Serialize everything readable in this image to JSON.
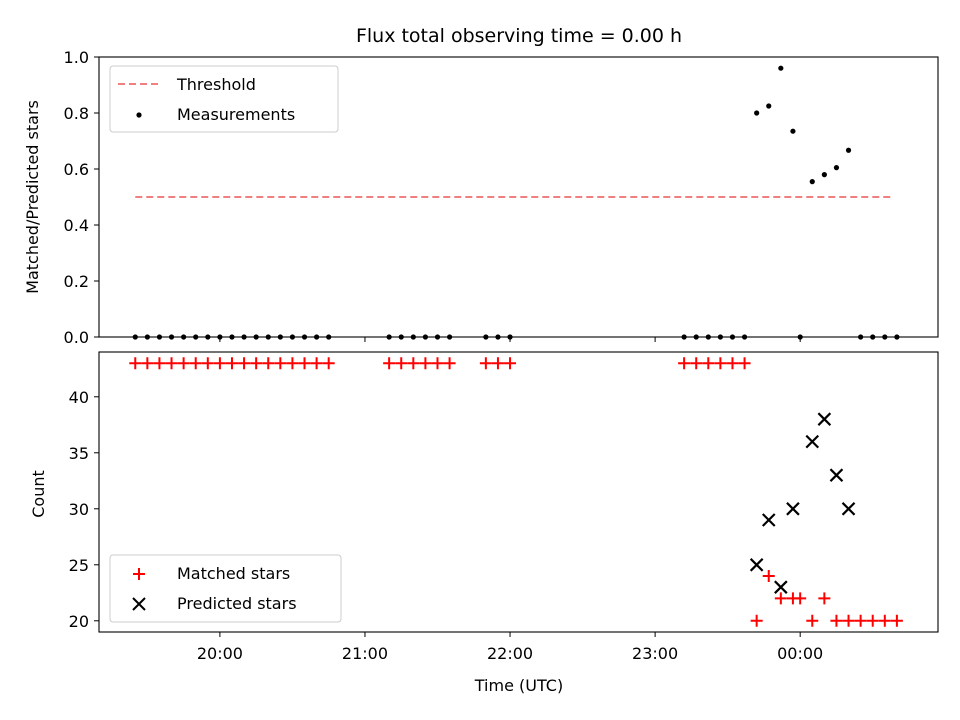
{
  "title": "Flux total observing time = 0.00 h",
  "xlabel": "Time (UTC)",
  "x_ticks": [
    "20:00",
    "21:00",
    "22:00",
    "23:00",
    "00:00"
  ],
  "colors": {
    "threshold": "#f08080",
    "measurements": "#000000",
    "matched": "#ff0000",
    "predicted": "#000000"
  },
  "chart_data": [
    {
      "type": "scatter",
      "panel": "top",
      "ylabel": "Matched/Predicted stars",
      "ylim": [
        0,
        1.0
      ],
      "y_ticks": [
        "0.0",
        "0.2",
        "0.4",
        "0.6",
        "0.8",
        "1.0"
      ],
      "legend": [
        "Threshold",
        "Measurements"
      ],
      "legend_position": "upper-left",
      "threshold": {
        "name": "Threshold",
        "y": 0.5,
        "x_start": "19:25",
        "x_end": "00:38"
      },
      "series": [
        {
          "name": "Measurements",
          "points": [
            [
              "19:25",
              0
            ],
            [
              "19:30",
              0
            ],
            [
              "19:35",
              0
            ],
            [
              "19:40",
              0
            ],
            [
              "19:45",
              0
            ],
            [
              "19:50",
              0
            ],
            [
              "19:55",
              0
            ],
            [
              "20:00",
              0
            ],
            [
              "20:05",
              0
            ],
            [
              "20:10",
              0
            ],
            [
              "20:15",
              0
            ],
            [
              "20:20",
              0
            ],
            [
              "20:25",
              0
            ],
            [
              "20:30",
              0
            ],
            [
              "20:35",
              0
            ],
            [
              "20:40",
              0
            ],
            [
              "20:45",
              0
            ],
            [
              "21:10",
              0
            ],
            [
              "21:15",
              0
            ],
            [
              "21:20",
              0
            ],
            [
              "21:25",
              0
            ],
            [
              "21:30",
              0
            ],
            [
              "21:35",
              0
            ],
            [
              "21:50",
              0
            ],
            [
              "21:55",
              0
            ],
            [
              "22:00",
              0
            ],
            [
              "23:12",
              0
            ],
            [
              "23:17",
              0
            ],
            [
              "23:22",
              0
            ],
            [
              "23:27",
              0
            ],
            [
              "23:32",
              0
            ],
            [
              "23:37",
              0
            ],
            [
              "23:42",
              0.8
            ],
            [
              "23:47",
              0.825
            ],
            [
              "23:52",
              0.96
            ],
            [
              "23:57",
              0.735
            ],
            [
              "00:00",
              0
            ],
            [
              "00:05",
              0.555
            ],
            [
              "00:10",
              0.58
            ],
            [
              "00:15",
              0.605
            ],
            [
              "00:20",
              0.667
            ],
            [
              "00:25",
              0
            ],
            [
              "00:30",
              0
            ],
            [
              "00:35",
              0
            ],
            [
              "00:40",
              0
            ]
          ]
        }
      ]
    },
    {
      "type": "scatter",
      "panel": "bottom",
      "ylabel": "Count",
      "ylim": [
        19,
        44
      ],
      "y_ticks": [
        20,
        25,
        30,
        35,
        40
      ],
      "legend": [
        "Matched stars",
        "Predicted stars"
      ],
      "legend_position": "lower-left",
      "series": [
        {
          "name": "Matched stars",
          "marker": "+",
          "points": [
            [
              "19:25",
              43
            ],
            [
              "19:30",
              43
            ],
            [
              "19:35",
              43
            ],
            [
              "19:40",
              43
            ],
            [
              "19:45",
              43
            ],
            [
              "19:50",
              43
            ],
            [
              "19:55",
              43
            ],
            [
              "20:00",
              43
            ],
            [
              "20:05",
              43
            ],
            [
              "20:10",
              43
            ],
            [
              "20:15",
              43
            ],
            [
              "20:20",
              43
            ],
            [
              "20:25",
              43
            ],
            [
              "20:30",
              43
            ],
            [
              "20:35",
              43
            ],
            [
              "20:40",
              43
            ],
            [
              "20:45",
              43
            ],
            [
              "21:10",
              43
            ],
            [
              "21:15",
              43
            ],
            [
              "21:20",
              43
            ],
            [
              "21:25",
              43
            ],
            [
              "21:30",
              43
            ],
            [
              "21:35",
              43
            ],
            [
              "21:50",
              43
            ],
            [
              "21:55",
              43
            ],
            [
              "22:00",
              43
            ],
            [
              "23:12",
              43
            ],
            [
              "23:17",
              43
            ],
            [
              "23:22",
              43
            ],
            [
              "23:27",
              43
            ],
            [
              "23:32",
              43
            ],
            [
              "23:37",
              43
            ],
            [
              "23:42",
              20
            ],
            [
              "23:47",
              24
            ],
            [
              "23:52",
              22
            ],
            [
              "23:57",
              22
            ],
            [
              "00:00",
              22
            ],
            [
              "00:05",
              20
            ],
            [
              "00:10",
              22
            ],
            [
              "00:15",
              20
            ],
            [
              "00:20",
              20
            ],
            [
              "00:25",
              20
            ],
            [
              "00:30",
              20
            ],
            [
              "00:35",
              20
            ],
            [
              "00:40",
              20
            ]
          ]
        },
        {
          "name": "Predicted stars",
          "marker": "x",
          "points": [
            [
              "23:42",
              25
            ],
            [
              "23:47",
              29
            ],
            [
              "23:52",
              23
            ],
            [
              "23:57",
              30
            ],
            [
              "00:05",
              36
            ],
            [
              "00:10",
              38
            ],
            [
              "00:15",
              33
            ],
            [
              "00:20",
              30
            ]
          ]
        }
      ]
    }
  ]
}
